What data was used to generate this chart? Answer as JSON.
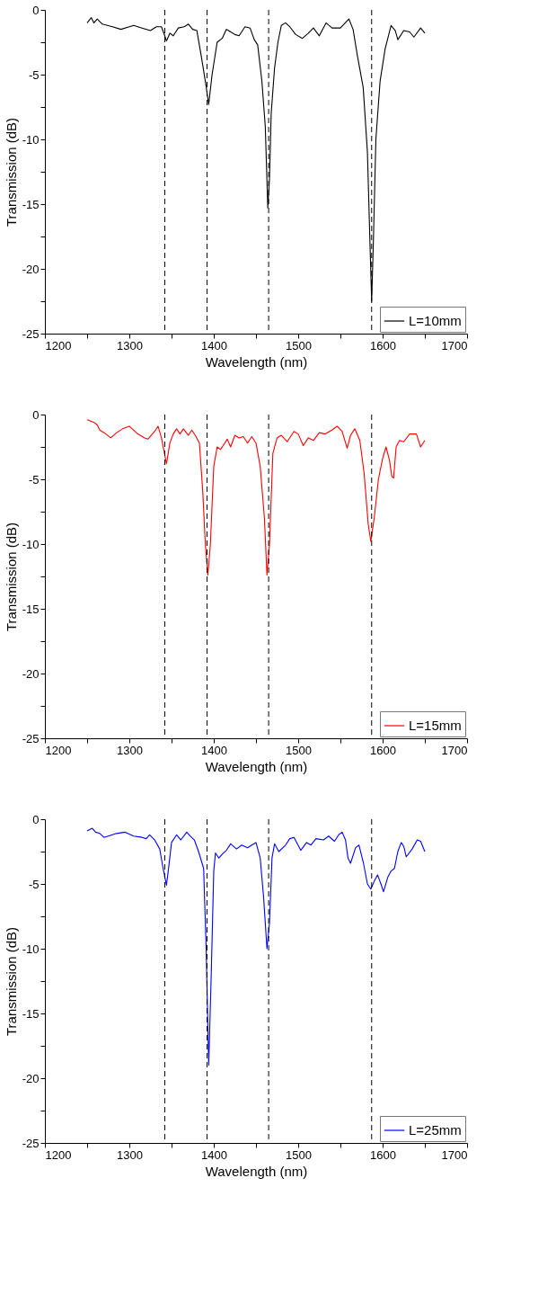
{
  "chart_data": [
    {
      "type": "line",
      "xlabel": "Wavelength (nm)",
      "ylabel": "Transmission (dB)",
      "xlim": [
        1200,
        1700
      ],
      "ylim": [
        -25,
        0
      ],
      "xticks": [
        1200,
        {
          "value": 1250,
          "label": null
        },
        1300,
        {
          "value": 1350,
          "label": null
        },
        1400,
        {
          "value": 1450,
          "label": null
        },
        1500,
        {
          "value": 1550,
          "label": null
        },
        1600,
        {
          "value": 1650,
          "label": null
        },
        1700
      ],
      "yticks": [
        -25,
        {
          "value": -22.5,
          "label": null
        },
        -20,
        {
          "value": -17.5,
          "label": null
        },
        -15,
        {
          "value": -12.5,
          "label": null
        },
        -10,
        {
          "value": -7.5,
          "label": null
        },
        -5,
        {
          "value": -2.5,
          "label": null
        },
        0
      ],
      "grid": false,
      "legend": "bottom right",
      "line_style": "solid",
      "ref_lines": [
        {
          "axis": "x",
          "value": 1342,
          "color": "#000000",
          "line_style": "dashed"
        },
        {
          "axis": "x",
          "value": 1392,
          "color": "#000000",
          "line_style": "dashed"
        },
        {
          "axis": "x",
          "value": 1465,
          "color": "#000000",
          "line_style": "dashed"
        },
        {
          "axis": "x",
          "value": 1587,
          "color": "#000000",
          "line_style": "dashed"
        }
      ],
      "series": [
        {
          "name": "L=10mm",
          "color": "#000000",
          "x": [
            1250,
            1255,
            1258,
            1262,
            1268,
            1280,
            1290,
            1300,
            1305,
            1315,
            1325,
            1332,
            1338,
            1342,
            1344,
            1348,
            1352,
            1358,
            1365,
            1370,
            1375,
            1380,
            1385,
            1390,
            1394,
            1398,
            1404,
            1410,
            1415,
            1420,
            1425,
            1430,
            1437,
            1443,
            1448,
            1452,
            1457,
            1461,
            1464,
            1466,
            1468,
            1472,
            1476,
            1480,
            1485,
            1490,
            1497,
            1505,
            1512,
            1518,
            1525,
            1533,
            1540,
            1550,
            1560,
            1565,
            1570,
            1577,
            1582,
            1585,
            1587,
            1589,
            1592,
            1597,
            1603,
            1610,
            1615,
            1618,
            1625,
            1632,
            1637,
            1645,
            1650
          ],
          "values": [
            -1.0,
            -0.6,
            -1.0,
            -0.7,
            -1.1,
            -1.3,
            -1.5,
            -1.3,
            -1.2,
            -1.4,
            -1.6,
            -1.3,
            -1.3,
            -2.0,
            -2.4,
            -1.8,
            -2.0,
            -1.4,
            -1.3,
            -1.1,
            -1.5,
            -1.6,
            -3.5,
            -5.5,
            -7.3,
            -5.0,
            -2.5,
            -2.2,
            -1.5,
            -1.7,
            -1.9,
            -2.0,
            -1.3,
            -1.4,
            -2.3,
            -2.7,
            -5.5,
            -9,
            -15.3,
            -13,
            -8,
            -4.5,
            -2.5,
            -1.2,
            -1.0,
            -1.3,
            -1.9,
            -2.2,
            -1.8,
            -1.4,
            -2.0,
            -1.0,
            -1.4,
            -1.4,
            -0.7,
            -1.5,
            -3.5,
            -6,
            -11,
            -18,
            -22.5,
            -18,
            -10,
            -5.5,
            -3,
            -1.2,
            -1.6,
            -2.3,
            -1.6,
            -1.7,
            -2.1,
            -1.4,
            -1.8
          ]
        }
      ]
    },
    {
      "type": "line",
      "xlabel": "Wavelength (nm)",
      "ylabel": "Transmission (dB)",
      "xlim": [
        1200,
        1700
      ],
      "ylim": [
        -25,
        0
      ],
      "xticks": [
        1200,
        {
          "value": 1250,
          "label": null
        },
        1300,
        {
          "value": 1350,
          "label": null
        },
        1400,
        {
          "value": 1450,
          "label": null
        },
        1500,
        {
          "value": 1550,
          "label": null
        },
        1600,
        {
          "value": 1650,
          "label": null
        },
        1700
      ],
      "yticks": [
        -25,
        {
          "value": -22.5,
          "label": null
        },
        -20,
        {
          "value": -17.5,
          "label": null
        },
        -15,
        {
          "value": -12.5,
          "label": null
        },
        -10,
        {
          "value": -7.5,
          "label": null
        },
        -5,
        {
          "value": -2.5,
          "label": null
        },
        0
      ],
      "grid": false,
      "legend": "bottom right",
      "line_style": "solid",
      "ref_lines": [
        {
          "axis": "x",
          "value": 1342,
          "color": "#000000",
          "line_style": "dashed"
        },
        {
          "axis": "x",
          "value": 1392,
          "color": "#000000",
          "line_style": "dashed"
        },
        {
          "axis": "x",
          "value": 1465,
          "color": "#000000",
          "line_style": "dashed"
        },
        {
          "axis": "x",
          "value": 1587,
          "color": "#000000",
          "line_style": "dashed"
        }
      ],
      "series": [
        {
          "name": "L=15mm",
          "color": "#ff0000",
          "x": [
            1250,
            1254,
            1258,
            1262,
            1265,
            1270,
            1278,
            1285,
            1292,
            1300,
            1310,
            1318,
            1322,
            1330,
            1334,
            1338,
            1344,
            1348,
            1352,
            1356,
            1360,
            1364,
            1370,
            1374,
            1379,
            1383,
            1387,
            1390,
            1393,
            1396,
            1400,
            1404,
            1408,
            1413,
            1416,
            1420,
            1425,
            1430,
            1435,
            1440,
            1445,
            1450,
            1455,
            1460,
            1463,
            1466,
            1470,
            1475,
            1480,
            1487,
            1495,
            1500,
            1506,
            1512,
            1518,
            1525,
            1532,
            1540,
            1546,
            1552,
            1558,
            1562,
            1567,
            1573,
            1578,
            1583,
            1586,
            1590,
            1595,
            1600,
            1604,
            1608,
            1611,
            1613,
            1616,
            1620,
            1625,
            1632,
            1640,
            1645,
            1650
          ],
          "values": [
            -0.4,
            -0.5,
            -0.6,
            -0.8,
            -1.2,
            -1.4,
            -1.8,
            -1.4,
            -1.1,
            -0.9,
            -1.5,
            -1.8,
            -1.9,
            -1.3,
            -0.9,
            -1.8,
            -3.8,
            -2.2,
            -1.5,
            -1.1,
            -1.5,
            -1.1,
            -1.6,
            -1.2,
            -1.7,
            -2.2,
            -6,
            -10,
            -12.4,
            -10,
            -4,
            -2.5,
            -2.7,
            -2.2,
            -1.9,
            -2.5,
            -1.6,
            -1.8,
            -1.7,
            -2.2,
            -1.7,
            -2.2,
            -4,
            -8,
            -12.4,
            -10,
            -3,
            -1.8,
            -1.6,
            -2.1,
            -1.3,
            -1.5,
            -2.4,
            -1.8,
            -2.0,
            -1.4,
            -1.5,
            -1.2,
            -0.9,
            -1.3,
            -2.6,
            -1.6,
            -1.1,
            -2.0,
            -4.5,
            -8.5,
            -9.8,
            -8,
            -5,
            -3.4,
            -2.5,
            -3.5,
            -4.8,
            -4.9,
            -2.5,
            -2.0,
            -2.1,
            -1.5,
            -1.5,
            -2.5,
            -2.0
          ]
        }
      ]
    },
    {
      "type": "line",
      "xlabel": "Wavelength (nm)",
      "ylabel": "Transmission (dB)",
      "xlim": [
        1200,
        1700
      ],
      "ylim": [
        -25,
        0
      ],
      "xticks": [
        1200,
        {
          "value": 1250,
          "label": null
        },
        1300,
        {
          "value": 1350,
          "label": null
        },
        1400,
        {
          "value": 1450,
          "label": null
        },
        1500,
        {
          "value": 1550,
          "label": null
        },
        1600,
        {
          "value": 1650,
          "label": null
        },
        1700
      ],
      "yticks": [
        -25,
        {
          "value": -22.5,
          "label": null
        },
        -20,
        {
          "value": -17.5,
          "label": null
        },
        -15,
        {
          "value": -12.5,
          "label": null
        },
        -10,
        {
          "value": -7.5,
          "label": null
        },
        -5,
        {
          "value": -2.5,
          "label": null
        },
        0
      ],
      "grid": false,
      "legend": "bottom right",
      "line_style": "solid",
      "ref_lines": [
        {
          "axis": "x",
          "value": 1342,
          "color": "#000000",
          "line_style": "dashed"
        },
        {
          "axis": "x",
          "value": 1392,
          "color": "#000000",
          "line_style": "dashed"
        },
        {
          "axis": "x",
          "value": 1465,
          "color": "#000000",
          "line_style": "dashed"
        },
        {
          "axis": "x",
          "value": 1587,
          "color": "#000000",
          "line_style": "dashed"
        }
      ],
      "series": [
        {
          "name": "L=25mm",
          "color": "#0000ff",
          "x": [
            1250,
            1253,
            1256,
            1260,
            1265,
            1270,
            1275,
            1285,
            1295,
            1305,
            1315,
            1320,
            1324,
            1330,
            1336,
            1340,
            1344,
            1347,
            1350,
            1356,
            1361,
            1368,
            1372,
            1377,
            1382,
            1388,
            1391,
            1394,
            1397,
            1400,
            1402,
            1406,
            1410,
            1415,
            1420,
            1427,
            1433,
            1440,
            1445,
            1450,
            1455,
            1459,
            1463,
            1466,
            1469,
            1472,
            1477,
            1485,
            1490,
            1495,
            1503,
            1510,
            1515,
            1521,
            1530,
            1536,
            1543,
            1548,
            1552,
            1556,
            1559,
            1562,
            1568,
            1572,
            1577,
            1582,
            1586,
            1590,
            1594,
            1598,
            1601,
            1606,
            1610,
            1614,
            1618,
            1622,
            1625,
            1628,
            1635,
            1641,
            1645,
            1650
          ],
          "values": [
            -0.9,
            -0.8,
            -0.7,
            -1.0,
            -1.1,
            -1.4,
            -1.3,
            -1.1,
            -1.0,
            -1.3,
            -1.4,
            -1.5,
            -1.2,
            -1.6,
            -2.3,
            -3.8,
            -5.1,
            -3.5,
            -1.8,
            -1.2,
            -1.6,
            -1.0,
            -1.3,
            -1.6,
            -2.5,
            -3.8,
            -10,
            -19,
            -12,
            -4,
            -2.6,
            -3.0,
            -2.7,
            -2.4,
            -1.9,
            -2.3,
            -2.0,
            -2.2,
            -2.0,
            -1.8,
            -3.0,
            -6,
            -10.0,
            -8,
            -3,
            -1.9,
            -2.5,
            -2.0,
            -1.5,
            -1.4,
            -2.4,
            -1.8,
            -2.0,
            -1.5,
            -1.6,
            -1.3,
            -1.7,
            -1.2,
            -1.0,
            -1.6,
            -3.0,
            -3.4,
            -2.2,
            -2.0,
            -3.3,
            -5.0,
            -5.4,
            -4.8,
            -4.3,
            -5.0,
            -5.6,
            -4.5,
            -4.0,
            -3.8,
            -2.5,
            -1.8,
            -2.1,
            -2.9,
            -2.3,
            -1.6,
            -1.7,
            -2.5
          ]
        }
      ]
    }
  ]
}
